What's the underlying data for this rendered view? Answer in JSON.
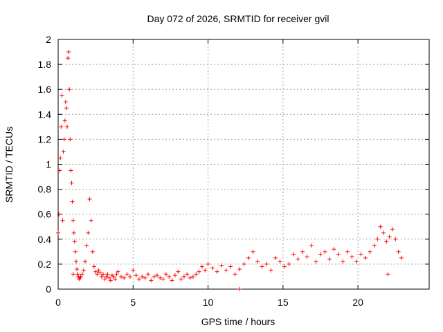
{
  "chart_data": {
    "type": "scatter",
    "title": "Day 072 of 2026, SRMTID for receiver gvil",
    "xlabel": "GPS time / hours",
    "ylabel": "SRMTID / TECUs",
    "xlim": [
      0,
      24.75
    ],
    "ylim": [
      0,
      2
    ],
    "xticks": [
      0,
      5,
      10,
      15,
      20
    ],
    "xtick_labels": [
      "0",
      "5",
      "10",
      "15",
      "20"
    ],
    "yticks": [
      0,
      0.2,
      0.4,
      0.6,
      0.8,
      1,
      1.2,
      1.4,
      1.6,
      1.8,
      2
    ],
    "ytick_labels": [
      "0",
      "0.2",
      "0.4",
      "0.6",
      "0.8",
      "1",
      "1.2",
      "1.4",
      "1.6",
      "1.8",
      "2"
    ],
    "grid": true,
    "marker": "+",
    "series": [
      {
        "name": "gvil",
        "color": "#ff0000",
        "x": [
          0.0,
          0.05,
          0.1,
          0.15,
          0.2,
          0.25,
          0.3,
          0.35,
          0.4,
          0.45,
          0.5,
          0.55,
          0.6,
          0.65,
          0.7,
          0.75,
          0.8,
          0.85,
          0.9,
          0.95,
          1.0,
          1.05,
          1.1,
          1.15,
          1.2,
          1.25,
          1.3,
          1.35,
          1.4,
          1.45,
          1.5,
          1.6,
          1.7,
          1.8,
          1.9,
          2.0,
          2.1,
          2.2,
          2.3,
          2.4,
          2.5,
          2.6,
          2.7,
          2.8,
          2.9,
          3.0,
          3.1,
          3.2,
          3.3,
          3.4,
          3.5,
          3.6,
          3.7,
          3.8,
          3.9,
          4.0,
          4.2,
          4.4,
          4.6,
          4.8,
          5.0,
          5.2,
          5.4,
          5.6,
          5.8,
          6.0,
          6.2,
          6.4,
          6.6,
          6.8,
          7.0,
          7.2,
          7.4,
          7.6,
          7.8,
          8.0,
          8.2,
          8.4,
          8.6,
          8.8,
          9.0,
          9.2,
          9.4,
          9.6,
          9.8,
          10.0,
          10.3,
          10.6,
          10.9,
          11.2,
          11.5,
          11.8,
          12.1,
          12.4,
          12.7,
          13.0,
          13.3,
          13.6,
          13.9,
          14.2,
          14.5,
          14.8,
          15.1,
          15.4,
          15.7,
          16.0,
          16.3,
          16.6,
          16.9,
          17.2,
          17.5,
          17.8,
          18.1,
          18.4,
          18.7,
          19.0,
          19.3,
          19.6,
          19.9,
          20.2,
          20.5,
          20.8,
          21.1,
          21.3,
          21.5,
          21.7,
          21.9,
          22.1,
          22.3,
          22.5,
          22.7,
          22.9
        ],
        "y": [
          0.45,
          0.6,
          0.95,
          1.05,
          1.3,
          1.55,
          0.55,
          1.1,
          1.2,
          1.35,
          1.5,
          1.45,
          1.3,
          1.85,
          1.9,
          1.6,
          1.2,
          0.95,
          0.85,
          0.7,
          0.55,
          0.45,
          0.38,
          0.3,
          0.22,
          0.16,
          0.12,
          0.1,
          0.08,
          0.09,
          0.1,
          0.12,
          0.15,
          0.22,
          0.35,
          0.45,
          0.72,
          0.55,
          0.3,
          0.18,
          0.14,
          0.12,
          0.15,
          0.13,
          0.1,
          0.12,
          0.08,
          0.1,
          0.12,
          0.09,
          0.07,
          0.11,
          0.1,
          0.08,
          0.12,
          0.14,
          0.1,
          0.09,
          0.12,
          0.1,
          0.15,
          0.11,
          0.08,
          0.1,
          0.09,
          0.12,
          0.07,
          0.1,
          0.11,
          0.09,
          0.08,
          0.12,
          0.1,
          0.07,
          0.11,
          0.14,
          0.08,
          0.1,
          0.12,
          0.09,
          0.1,
          0.12,
          0.14,
          0.18,
          0.15,
          0.2,
          0.17,
          0.14,
          0.19,
          0.15,
          0.18,
          0.12,
          0.16,
          0.2,
          0.25,
          0.3,
          0.22,
          0.18,
          0.2,
          0.15,
          0.25,
          0.22,
          0.18,
          0.2,
          0.28,
          0.24,
          0.3,
          0.26,
          0.35,
          0.22,
          0.28,
          0.3,
          0.24,
          0.32,
          0.28,
          0.22,
          0.3,
          0.26,
          0.22,
          0.28,
          0.25,
          0.3,
          0.35,
          0.4,
          0.5,
          0.45,
          0.38,
          0.42,
          0.48,
          0.4,
          0.3,
          0.25
        ]
      }
    ],
    "outliers": [
      {
        "x": 1.0,
        "y": 0.12
      },
      {
        "x": 12.1,
        "y": 0.0
      },
      {
        "x": 22.0,
        "y": 0.12
      }
    ]
  }
}
